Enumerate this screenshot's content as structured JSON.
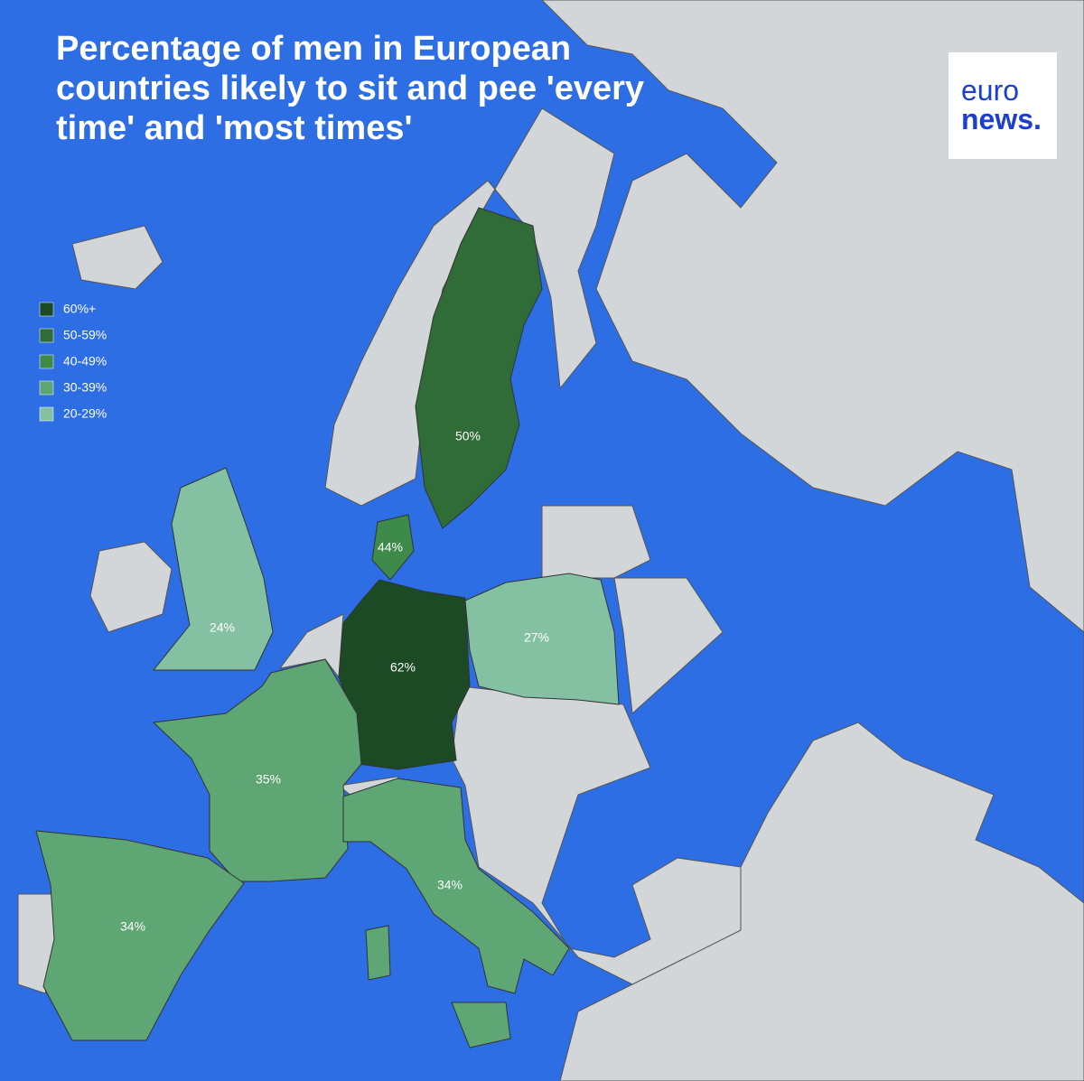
{
  "header": {
    "title": "Percentage of men in European countries likely to sit and pee 'every time' and 'most times'"
  },
  "logo": {
    "line1": "euro",
    "line2": "news."
  },
  "legend": {
    "items": [
      {
        "label": "60%+",
        "color": "#1c4a25"
      },
      {
        "label": "50-59%",
        "color": "#2f6c37"
      },
      {
        "label": "40-49%",
        "color": "#3e8a4b"
      },
      {
        "label": "30-39%",
        "color": "#5ea673"
      },
      {
        "label": "20-29%",
        "color": "#84c1a3"
      }
    ]
  },
  "regions": [
    {
      "label": "50%",
      "color": "#2f6c37"
    },
    {
      "label": "44%",
      "color": "#3e8a4b"
    },
    {
      "label": "62%",
      "color": "#1c4a25"
    },
    {
      "label": "27%",
      "color": "#84c1a3"
    },
    {
      "label": "24%",
      "color": "#84c1a3"
    },
    {
      "label": "35%",
      "color": "#5ea673"
    },
    {
      "label": "34%",
      "color": "#5ea673"
    },
    {
      "label": "34%",
      "color": "#5ea673"
    }
  ]
}
